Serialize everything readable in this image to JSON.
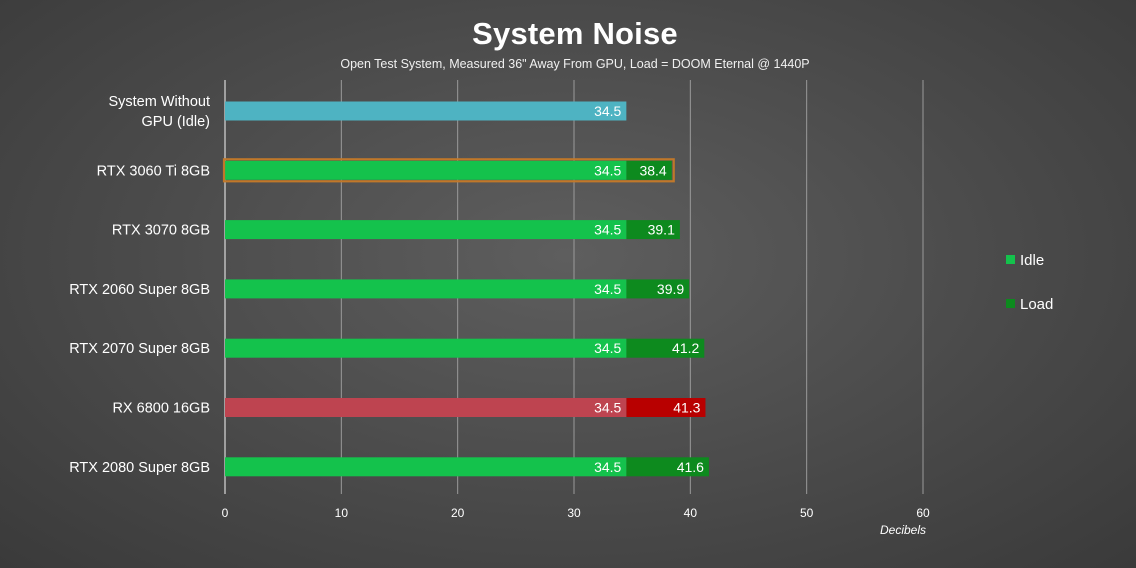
{
  "chart_data": {
    "type": "bar",
    "orientation": "horizontal",
    "title": "System Noise",
    "subtitle": "Open Test System, Measured 36\" Away From GPU, Load = DOOM Eternal @ 1440P",
    "xlabel": "Decibels",
    "xlim": [
      0,
      60
    ],
    "xticks": [
      0,
      10,
      20,
      30,
      40,
      50,
      60
    ],
    "grid": true,
    "legend_position": "right",
    "categories": [
      {
        "label": "System Without GPU (Idle)",
        "lines": [
          "System Without",
          "GPU (Idle)"
        ]
      },
      {
        "label": "RTX 3060 Ti 8GB",
        "lines": [
          "RTX 3060 Ti 8GB"
        ]
      },
      {
        "label": "RTX 3070 8GB",
        "lines": [
          "RTX 3070 8GB"
        ]
      },
      {
        "label": "RTX 2060 Super 8GB",
        "lines": [
          "RTX 2060 Super 8GB"
        ]
      },
      {
        "label": "RTX 2070 Super 8GB",
        "lines": [
          "RTX 2070 Super 8GB"
        ]
      },
      {
        "label": "RX 6800 16GB",
        "lines": [
          "RX 6800 16GB"
        ]
      },
      {
        "label": "RTX 2080 Super 8GB",
        "lines": [
          "RTX 2080 Super 8GB"
        ]
      }
    ],
    "series": [
      {
        "name": "Idle",
        "color": "#14c24c",
        "values": [
          34.5,
          34.5,
          34.5,
          34.5,
          34.5,
          34.5,
          34.5
        ]
      },
      {
        "name": "Load",
        "color": "#0d8a1e",
        "values": [
          null,
          38.4,
          39.1,
          39.9,
          41.2,
          41.3,
          41.6
        ]
      }
    ],
    "bar_colors": {
      "baseline_idle": "#4eb3c2",
      "highlight_outline": "#c0782a",
      "amd_idle": "#be4450",
      "amd_load": "#b80000"
    },
    "highlighted_category": "RTX 3060 Ti 8GB",
    "amd_category": "RX 6800 16GB",
    "baseline_category": "System Without GPU (Idle)"
  }
}
